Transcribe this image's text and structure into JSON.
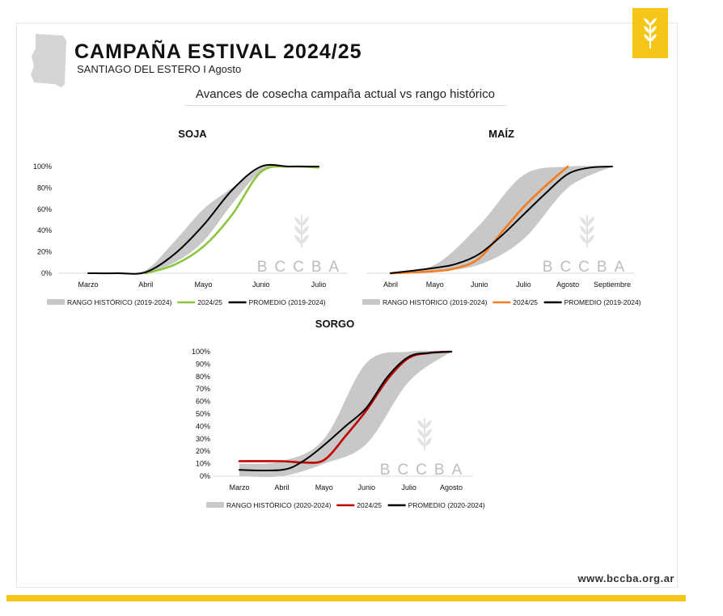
{
  "header": {
    "title": "CAMPAÑA ESTIVAL 2024/25",
    "subtitle": "SANTIAGO DEL ESTERO I Agosto",
    "heading": "Avances de cosecha campaña actual vs rango histórico"
  },
  "footer": {
    "website": "www.bccba.org.ar"
  },
  "watermark": "BCCBA",
  "colors": {
    "accent": "#f5c518",
    "range": "#c8c8c8",
    "average": "#000000"
  },
  "chart_data": [
    {
      "type": "area",
      "title": "SOJA",
      "categories": [
        "Marzo",
        "Abril",
        "Mayo",
        "Junio",
        "Julio"
      ],
      "ylim": [
        0,
        100
      ],
      "yticks": [
        "0%",
        "20%",
        "40%",
        "60%",
        "80%",
        "100%"
      ],
      "x": [
        0,
        0.5,
        1,
        1.5,
        2,
        2.5,
        3,
        3.5,
        4
      ],
      "range_low": [
        0,
        0,
        1,
        10,
        30,
        65,
        95,
        100,
        100
      ],
      "range_high": [
        0,
        1,
        3,
        30,
        60,
        80,
        100,
        100,
        100
      ],
      "series": [
        {
          "name": "2024/25",
          "color": "#8cc63f",
          "x": [
            1,
            1.5,
            2,
            2.5,
            3,
            3.5,
            4
          ],
          "values": [
            0,
            8,
            25,
            55,
            95,
            100,
            99
          ]
        },
        {
          "name": "PROMEDIO (2019-2024)",
          "color": "#000000",
          "x": [
            0,
            0.5,
            1,
            1.5,
            2,
            2.5,
            3,
            3.5,
            4
          ],
          "values": [
            0,
            0,
            1,
            18,
            45,
            78,
            100,
            100,
            100
          ]
        }
      ],
      "legend": [
        "RANGO HISTÓRICO (2019-2024)",
        "2024/25",
        "PROMEDIO (2019-2024)"
      ]
    },
    {
      "type": "area",
      "title": "MAÍZ",
      "categories": [
        "Abril",
        "Mayo",
        "Junio",
        "Julio",
        "Agosto",
        "Septiembre"
      ],
      "ylim": [
        0,
        100
      ],
      "yticks": [],
      "x": [
        0,
        1,
        2,
        3,
        4,
        5
      ],
      "range_low": [
        0,
        2,
        8,
        32,
        80,
        100
      ],
      "range_high": [
        1,
        8,
        45,
        92,
        100,
        100
      ],
      "series": [
        {
          "name": "2024/25",
          "color": "#f47c20",
          "x": [
            0,
            1,
            1.5,
            2,
            2.5,
            3,
            3.5,
            4
          ],
          "values": [
            0,
            2,
            5,
            14,
            38,
            62,
            82,
            100
          ]
        },
        {
          "name": "PROMEDIO (2019-2024)",
          "color": "#000000",
          "x": [
            0,
            1,
            1.5,
            2,
            2.5,
            3,
            3.5,
            4,
            4.5,
            5
          ],
          "values": [
            0,
            5,
            9,
            18,
            35,
            55,
            75,
            93,
            99,
            100
          ]
        }
      ],
      "legend": [
        "RANGO HISTÓRICO (2019-2024)",
        "2024/25",
        "PROMEDIO (2019-2024)"
      ]
    },
    {
      "type": "area",
      "title": "SORGO",
      "categories": [
        "Marzo",
        "Abril",
        "Mayo",
        "Junio",
        "Julio",
        "Agosto"
      ],
      "ylim": [
        0,
        100
      ],
      "yticks": [
        "0%",
        "10%",
        "20%",
        "30%",
        "40%",
        "50%",
        "60%",
        "70%",
        "80%",
        "90%",
        "100%"
      ],
      "x": [
        0,
        1,
        2,
        3,
        4,
        5
      ],
      "range_low": [
        0,
        0,
        10,
        26,
        76,
        100
      ],
      "range_high": [
        10,
        12,
        30,
        91,
        100,
        100
      ],
      "series": [
        {
          "name": "2024/25",
          "color": "#c00000",
          "x": [
            0,
            1,
            1.5,
            2,
            2.5,
            3,
            3.5,
            4,
            4.5,
            5
          ],
          "values": [
            12,
            12,
            11,
            13,
            32,
            53,
            78,
            95,
            99,
            100
          ]
        },
        {
          "name": "PROMEDIO (2020-2024)",
          "color": "#000000",
          "x": [
            0,
            1,
            1.5,
            2,
            2.5,
            3,
            3.5,
            4,
            4.5,
            5
          ],
          "values": [
            5,
            5,
            12,
            25,
            40,
            55,
            80,
            96,
            99,
            100
          ]
        }
      ],
      "legend": [
        "RANGO HISTÓRICO (2020-2024)",
        "2024/25",
        "PROMEDIO (2020-2024)"
      ]
    }
  ]
}
